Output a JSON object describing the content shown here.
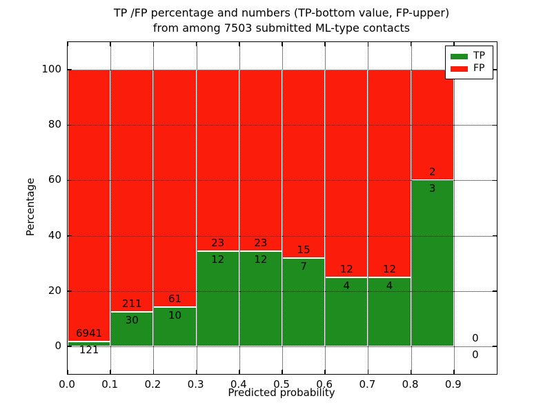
{
  "chart_data": {
    "type": "bar",
    "subtype": "stacked-percentage-histogram",
    "title": "TP /FP percentage and numbers (TP-bottom value, FP-upper)",
    "subtitle": "from among 7503 submitted ML-type contacts",
    "xlabel": "Predicted probability",
    "ylabel": "Percentage",
    "xlim": [
      0,
      1.0
    ],
    "ylim": [
      -10,
      110
    ],
    "xticks": [
      "0.0",
      "0.1",
      "0.2",
      "0.3",
      "0.4",
      "0.5",
      "0.6",
      "0.7",
      "0.8",
      "0.9"
    ],
    "yticks": [
      0,
      20,
      40,
      60,
      80,
      100
    ],
    "grid": true,
    "grid_style": "dotted",
    "bar_edge_color": "#ffffff",
    "legend": {
      "position": "upper right",
      "entries": [
        {
          "label": "TP",
          "color": "#1e8c1e"
        },
        {
          "label": "FP",
          "color": "#fb1c0c"
        }
      ]
    },
    "bins": [
      {
        "range": [
          0.0,
          0.1
        ],
        "tp": 121,
        "fp": 6941
      },
      {
        "range": [
          0.1,
          0.2
        ],
        "tp": 30,
        "fp": 211
      },
      {
        "range": [
          0.2,
          0.3
        ],
        "tp": 10,
        "fp": 61
      },
      {
        "range": [
          0.3,
          0.4
        ],
        "tp": 12,
        "fp": 23
      },
      {
        "range": [
          0.4,
          0.5
        ],
        "tp": 12,
        "fp": 23
      },
      {
        "range": [
          0.5,
          0.6
        ],
        "tp": 7,
        "fp": 15
      },
      {
        "range": [
          0.6,
          0.7
        ],
        "tp": 4,
        "fp": 12
      },
      {
        "range": [
          0.7,
          0.8
        ],
        "tp": 4,
        "fp": 12
      },
      {
        "range": [
          0.8,
          0.9
        ],
        "tp": 3,
        "fp": 2
      },
      {
        "range": [
          0.9,
          1.0
        ],
        "tp": 0,
        "fp": 0
      }
    ]
  }
}
